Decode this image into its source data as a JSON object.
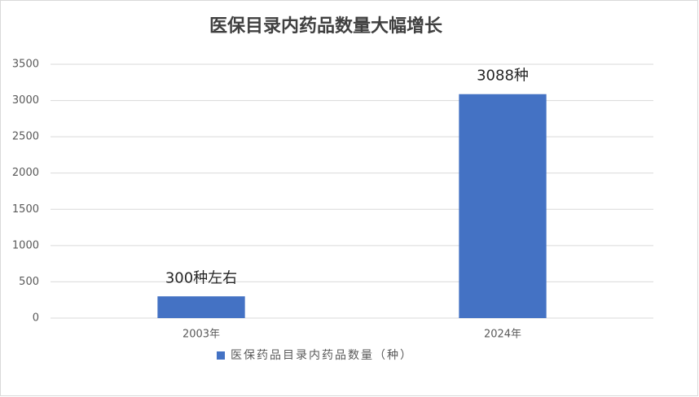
{
  "chart_data": {
    "type": "bar",
    "title": "医保目录内药品数量大幅增长",
    "categories": [
      "2003年",
      "2024年"
    ],
    "series": [
      {
        "name": "医保药品目录内药品数量（种）",
        "color": "#4472c4",
        "values": [
          300,
          3088
        ],
        "value_labels": [
          "300种左右",
          "3088种"
        ]
      }
    ],
    "ylim": [
      0,
      3500
    ],
    "yticks": [
      0,
      500,
      1000,
      1500,
      2000,
      2500,
      3000,
      3500
    ],
    "grid": true,
    "legend": "bottom"
  }
}
